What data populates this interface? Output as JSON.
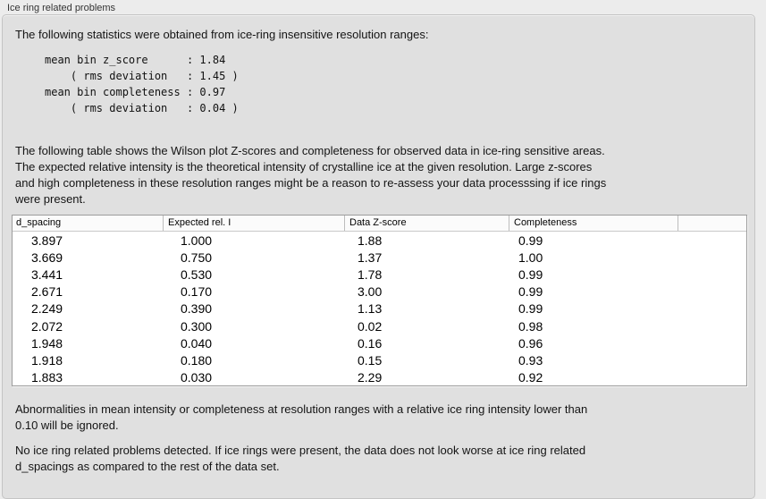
{
  "groupbox": {
    "title": "Ice ring related problems"
  },
  "panel": {
    "intro": "The following statistics were obtained from ice-ring insensitive resolution ranges:",
    "stats_block": {
      "lines": [
        "mean bin z_score      : 1.84",
        "    ( rms deviation   : 1.45 )",
        "mean bin completeness : 0.97",
        "    ( rms deviation   : 0.04 )"
      ]
    },
    "table_description_lines": [
      "The following table shows the Wilson plot Z-scores and completeness for observed data in ice-ring sensitive areas.",
      "The expected relative intensity is the theoretical intensity of crystalline ice at the given resolution. Large z-scores",
      "and high completeness in these resolution ranges might be a reason to re-assess your data processsing if ice rings",
      "were present."
    ],
    "table": {
      "columns": [
        "d_spacing",
        "Expected rel. I",
        "Data Z-score",
        "Completeness"
      ],
      "rows": [
        [
          "3.897",
          "1.000",
          "1.88",
          "0.99"
        ],
        [
          "3.669",
          "0.750",
          "1.37",
          "1.00"
        ],
        [
          "3.441",
          "0.530",
          "1.78",
          "0.99"
        ],
        [
          "2.671",
          "0.170",
          "3.00",
          "0.99"
        ],
        [
          "2.249",
          "0.390",
          "1.13",
          "0.99"
        ],
        [
          "2.072",
          "0.300",
          "0.02",
          "0.98"
        ],
        [
          "1.948",
          "0.040",
          "0.16",
          "0.96"
        ],
        [
          "1.918",
          "0.180",
          "0.15",
          "0.93"
        ],
        [
          "1.883",
          "0.030",
          "2.29",
          "0.92"
        ]
      ]
    },
    "note_lines": [
      "Abnormalities in mean intensity or completeness at resolution ranges with a relative ice ring intensity lower than",
      "0.10 will be ignored."
    ],
    "conclusion_lines": [
      "No ice ring related problems detected. If ice rings were present, the data does not look worse at ice ring related",
      "d_spacings as compared to the rest of the data set."
    ]
  },
  "colors": {
    "page_background": "#ececec",
    "panel_background": "#e0e0e0",
    "panel_border": "#c4c4c4",
    "table_border": "#9c9c9c",
    "table_background": "#ffffff",
    "text": "#141414"
  }
}
